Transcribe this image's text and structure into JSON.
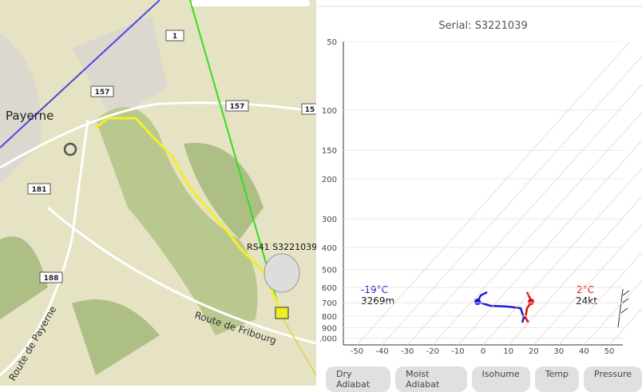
{
  "map": {
    "town": "Payerne",
    "road_labels": [
      "1",
      "157",
      "157",
      "15",
      "181",
      "188"
    ],
    "street_labels": [
      "Route de Fribourg",
      "Route de Payerne"
    ],
    "balloon_label": "RS41 S3221039"
  },
  "skewt": {
    "title": "Serial: S3221039",
    "pressure_ticks": [
      50,
      100,
      150,
      200,
      300,
      400,
      500,
      600,
      700,
      800,
      900,
      {
        "value": 1000,
        "label": ".000"
      }
    ],
    "temp_ticks": [
      -50,
      -40,
      -30,
      -20,
      -10,
      0,
      10,
      20,
      30,
      40,
      50
    ],
    "left_readout": {
      "temp": "-19°C",
      "height": "3269m"
    },
    "right_readout": {
      "temp": "2°C",
      "wind": "24kt"
    }
  },
  "buttons": [
    "Dry Adiabat",
    "Moist Adiabat",
    "Isohume",
    "Temp",
    "Pressure"
  ]
}
